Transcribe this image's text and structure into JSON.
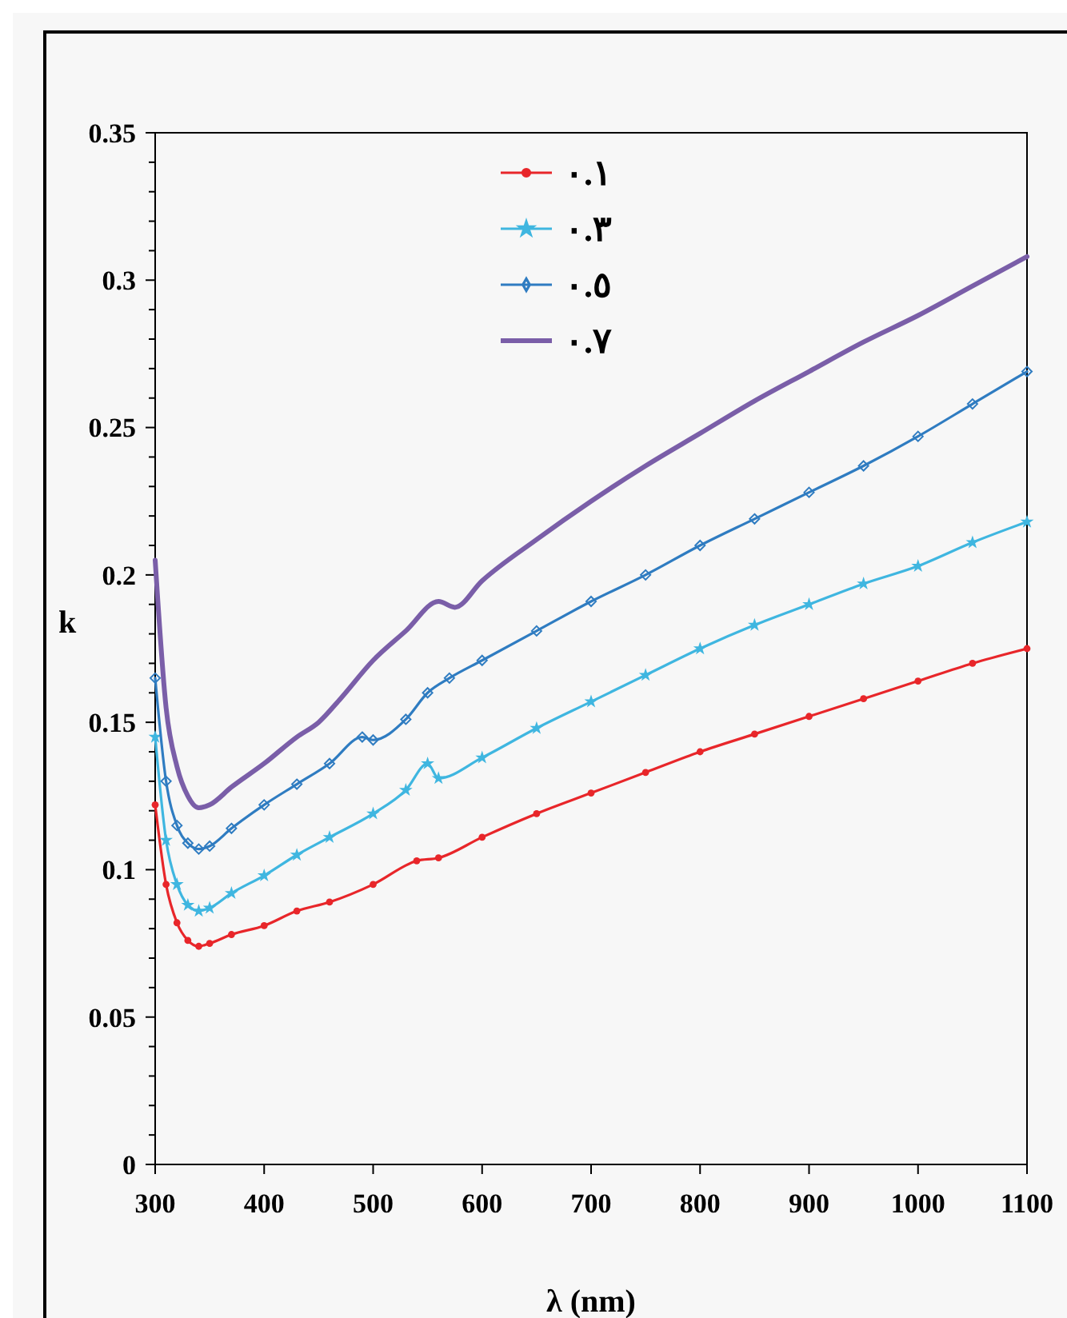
{
  "chart_data": {
    "type": "line",
    "xlabel": "λ (nm)",
    "ylabel": "k",
    "xlim": [
      300,
      1100
    ],
    "xticks": [
      300,
      400,
      500,
      600,
      700,
      800,
      900,
      1000,
      1100
    ],
    "ylim": [
      0,
      0.35
    ],
    "yticks": [
      0,
      {
        "value": 0.01,
        "label": null
      },
      {
        "value": 0.02,
        "label": null
      },
      {
        "value": 0.03,
        "label": null
      },
      {
        "value": 0.04,
        "label": null
      },
      0.05,
      {
        "value": 0.06,
        "label": null
      },
      {
        "value": 0.07,
        "label": null
      },
      {
        "value": 0.08,
        "label": null
      },
      {
        "value": 0.09,
        "label": null
      },
      0.1,
      {
        "value": 0.11,
        "label": null
      },
      {
        "value": 0.12,
        "label": null
      },
      {
        "value": 0.13,
        "label": null
      },
      {
        "value": 0.14,
        "label": null
      },
      0.15,
      {
        "value": 0.16,
        "label": null
      },
      {
        "value": 0.17,
        "label": null
      },
      {
        "value": 0.18,
        "label": null
      },
      {
        "value": 0.19,
        "label": null
      },
      0.2,
      {
        "value": 0.21,
        "label": null
      },
      {
        "value": 0.22,
        "label": null
      },
      {
        "value": 0.23,
        "label": null
      },
      {
        "value": 0.24,
        "label": null
      },
      0.25,
      {
        "value": 0.26,
        "label": null
      },
      {
        "value": 0.27,
        "label": null
      },
      {
        "value": 0.28,
        "label": null
      },
      {
        "value": 0.29,
        "label": null
      },
      0.3,
      {
        "value": 0.31,
        "label": null
      },
      {
        "value": 0.32,
        "label": null
      },
      {
        "value": 0.33,
        "label": null
      },
      {
        "value": 0.34,
        "label": null
      },
      0.35
    ],
    "grid": false,
    "legend": "top",
    "line_style": "solid",
    "series": [
      {
        "name": "٠.١",
        "color": "#e8262a",
        "marker": "circle",
        "x": [
          300,
          310,
          320,
          330,
          340,
          350,
          370,
          400,
          430,
          460,
          500,
          540,
          560,
          600,
          650,
          700,
          750,
          800,
          850,
          900,
          950,
          1000,
          1050,
          1100
        ],
        "values": [
          0.122,
          0.095,
          0.082,
          0.076,
          0.074,
          0.075,
          0.078,
          0.081,
          0.086,
          0.089,
          0.095,
          0.103,
          0.104,
          0.111,
          0.119,
          0.126,
          0.133,
          0.14,
          0.146,
          0.152,
          0.158,
          0.164,
          0.17,
          0.175
        ]
      },
      {
        "name": "٠.٣",
        "color": "#3fb6e0",
        "marker": "star",
        "x": [
          300,
          310,
          320,
          330,
          340,
          350,
          370,
          400,
          430,
          460,
          500,
          530,
          550,
          560,
          600,
          650,
          700,
          750,
          800,
          850,
          900,
          950,
          1000,
          1050,
          1100
        ],
        "values": [
          0.145,
          0.11,
          0.095,
          0.088,
          0.086,
          0.087,
          0.092,
          0.098,
          0.105,
          0.111,
          0.119,
          0.127,
          0.136,
          0.131,
          0.138,
          0.148,
          0.157,
          0.166,
          0.175,
          0.183,
          0.19,
          0.197,
          0.203,
          0.211,
          0.218
        ]
      },
      {
        "name": "٠.٥",
        "color": "#2f7cc1",
        "marker": "diamond",
        "x": [
          300,
          310,
          320,
          330,
          340,
          350,
          370,
          400,
          430,
          460,
          490,
          500,
          530,
          550,
          570,
          600,
          650,
          700,
          750,
          800,
          850,
          900,
          950,
          1000,
          1050,
          1100
        ],
        "values": [
          0.165,
          0.13,
          0.115,
          0.109,
          0.107,
          0.108,
          0.114,
          0.122,
          0.129,
          0.136,
          0.145,
          0.144,
          0.151,
          0.16,
          0.165,
          0.171,
          0.181,
          0.191,
          0.2,
          0.21,
          0.219,
          0.228,
          0.237,
          0.247,
          0.258,
          0.269
        ]
      },
      {
        "name": "٠.٧",
        "color": "#7a5ea8",
        "marker": "none",
        "x": [
          300,
          310,
          320,
          330,
          340,
          350,
          370,
          400,
          430,
          450,
          470,
          500,
          530,
          560,
          575,
          600,
          650,
          700,
          750,
          800,
          850,
          900,
          950,
          1000,
          1050,
          1100
        ],
        "values": [
          0.205,
          0.155,
          0.135,
          0.125,
          0.121,
          0.122,
          0.128,
          0.136,
          0.145,
          0.15,
          0.158,
          0.171,
          0.181,
          0.191,
          0.189,
          0.198,
          0.212,
          0.225,
          0.237,
          0.248,
          0.259,
          0.269,
          0.279,
          0.288,
          0.298,
          0.308
        ]
      }
    ]
  }
}
